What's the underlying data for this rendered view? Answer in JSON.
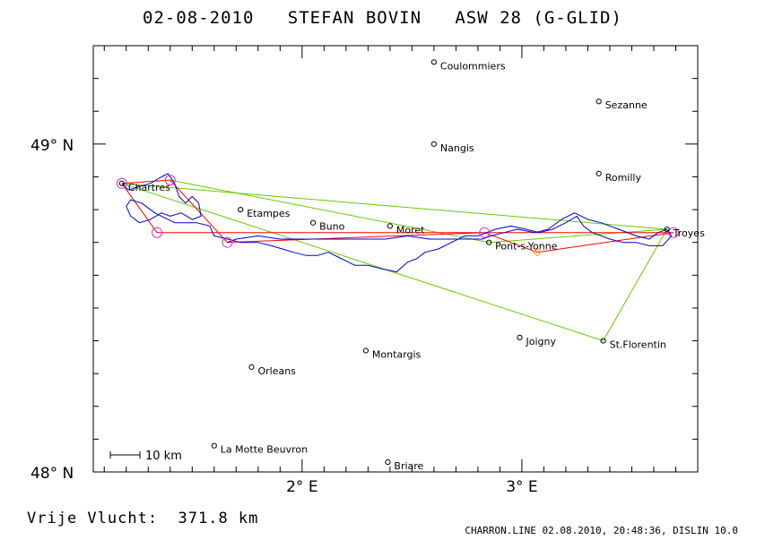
{
  "title": "02-08-2010   STEFAN BOVIN   ASW 28 (G-GLID)",
  "distance_text": "Vrije Vlucht:  371.8 km",
  "footer_text": "CHARRON.LINE 02.08.2010, 20:48:36, DISLIN 10.0",
  "scale_bar_label": "10 km",
  "map": {
    "lon_range": [
      1.05,
      3.8
    ],
    "lat_range": [
      48.0,
      49.3
    ],
    "lat_ticks": [
      {
        "lat": 49.0,
        "label": "49° N"
      },
      {
        "lat": 48.0,
        "label": "48° N"
      }
    ],
    "lon_ticks": [
      {
        "lon": 2.0,
        "label": "2° E"
      },
      {
        "lon": 3.0,
        "label": "3° E"
      }
    ],
    "towns": [
      {
        "name": "Coulommiers",
        "lon": 2.6,
        "lat": 49.25
      },
      {
        "name": "Sezanne",
        "lon": 3.35,
        "lat": 49.13
      },
      {
        "name": "Nangis",
        "lon": 2.6,
        "lat": 49.0
      },
      {
        "name": "Romilly",
        "lon": 3.35,
        "lat": 48.91
      },
      {
        "name": "Chartres",
        "lon": 1.18,
        "lat": 48.88
      },
      {
        "name": "Etampes",
        "lon": 1.72,
        "lat": 48.8
      },
      {
        "name": "Buno",
        "lon": 2.05,
        "lat": 48.76
      },
      {
        "name": "Moret",
        "lon": 2.4,
        "lat": 48.75
      },
      {
        "name": "Troyes",
        "lon": 3.66,
        "lat": 48.74
      },
      {
        "name": "Pont-s-Yonne",
        "lon": 2.85,
        "lat": 48.7
      },
      {
        "name": "Joigny",
        "lon": 2.99,
        "lat": 48.41
      },
      {
        "name": "St.Florentin",
        "lon": 3.37,
        "lat": 48.4
      },
      {
        "name": "Montargis",
        "lon": 2.29,
        "lat": 48.37
      },
      {
        "name": "Orleans",
        "lon": 1.77,
        "lat": 48.32
      },
      {
        "name": "La Motte Beuvron",
        "lon": 1.6,
        "lat": 48.08
      },
      {
        "name": "Briare",
        "lon": 2.39,
        "lat": 48.03
      }
    ],
    "turnpoints": [
      {
        "lon": 1.18,
        "lat": 48.88
      },
      {
        "lon": 1.4,
        "lat": 48.89
      },
      {
        "lon": 1.34,
        "lat": 48.73
      },
      {
        "lon": 1.66,
        "lat": 48.7
      },
      {
        "lon": 2.83,
        "lat": 48.73
      },
      {
        "lon": 3.69,
        "lat": 48.73
      }
    ],
    "task_route": [
      {
        "lon": 1.18,
        "lat": 48.88
      },
      {
        "lon": 3.37,
        "lat": 48.4
      },
      {
        "lon": 3.66,
        "lat": 48.74
      },
      {
        "lon": 1.18,
        "lat": 48.88
      }
    ],
    "task_route_2": [
      {
        "lon": 1.4,
        "lat": 48.89
      },
      {
        "lon": 2.85,
        "lat": 48.7
      },
      {
        "lon": 3.66,
        "lat": 48.74
      }
    ],
    "scored_route": [
      {
        "lon": 1.18,
        "lat": 48.88
      },
      {
        "lon": 1.34,
        "lat": 48.73
      },
      {
        "lon": 3.69,
        "lat": 48.73
      },
      {
        "lon": 3.07,
        "lat": 48.67
      },
      {
        "lon": 2.83,
        "lat": 48.73
      },
      {
        "lon": 1.66,
        "lat": 48.7
      },
      {
        "lon": 1.4,
        "lat": 48.89
      },
      {
        "lon": 1.18,
        "lat": 48.88
      }
    ],
    "flight_track": [
      [
        1.18,
        48.88
      ],
      [
        1.21,
        48.86
      ],
      [
        1.26,
        48.87
      ],
      [
        1.31,
        48.88
      ],
      [
        1.36,
        48.9
      ],
      [
        1.39,
        48.91
      ],
      [
        1.42,
        48.88
      ],
      [
        1.44,
        48.84
      ],
      [
        1.47,
        48.82
      ],
      [
        1.5,
        48.84
      ],
      [
        1.53,
        48.82
      ],
      [
        1.54,
        48.78
      ],
      [
        1.5,
        48.77
      ],
      [
        1.45,
        48.79
      ],
      [
        1.4,
        48.78
      ],
      [
        1.36,
        48.79
      ],
      [
        1.31,
        48.77
      ],
      [
        1.26,
        48.76
      ],
      [
        1.22,
        48.78
      ],
      [
        1.2,
        48.81
      ],
      [
        1.22,
        48.83
      ],
      [
        1.27,
        48.82
      ],
      [
        1.33,
        48.79
      ],
      [
        1.42,
        48.76
      ],
      [
        1.52,
        48.76
      ],
      [
        1.58,
        48.75
      ],
      [
        1.6,
        48.72
      ],
      [
        1.66,
        48.71
      ],
      [
        1.72,
        48.7
      ],
      [
        1.8,
        48.7
      ],
      [
        1.86,
        48.69
      ],
      [
        1.91,
        48.68
      ],
      [
        1.96,
        48.67
      ],
      [
        2.02,
        48.66
      ],
      [
        2.07,
        48.66
      ],
      [
        2.12,
        48.67
      ],
      [
        2.18,
        48.65
      ],
      [
        2.24,
        48.63
      ],
      [
        2.3,
        48.63
      ],
      [
        2.36,
        48.62
      ],
      [
        2.43,
        48.61
      ],
      [
        2.48,
        48.64
      ],
      [
        2.52,
        48.65
      ],
      [
        2.56,
        48.67
      ],
      [
        2.62,
        48.68
      ],
      [
        2.68,
        48.7
      ],
      [
        2.74,
        48.72
      ],
      [
        2.8,
        48.72
      ],
      [
        2.84,
        48.73
      ],
      [
        2.88,
        48.74
      ],
      [
        2.95,
        48.75
      ],
      [
        3.02,
        48.74
      ],
      [
        3.08,
        48.73
      ],
      [
        3.14,
        48.74
      ],
      [
        3.2,
        48.76
      ],
      [
        3.25,
        48.78
      ],
      [
        3.28,
        48.75
      ],
      [
        3.32,
        48.73
      ],
      [
        3.4,
        48.71
      ],
      [
        3.46,
        48.7
      ],
      [
        3.52,
        48.7
      ],
      [
        3.58,
        48.69
      ],
      [
        3.64,
        48.69
      ],
      [
        3.68,
        48.72
      ],
      [
        3.66,
        48.74
      ],
      [
        3.62,
        48.73
      ],
      [
        3.58,
        48.71
      ],
      [
        3.52,
        48.72
      ],
      [
        3.44,
        48.74
      ],
      [
        3.36,
        48.76
      ],
      [
        3.3,
        48.77
      ],
      [
        3.24,
        48.79
      ],
      [
        3.18,
        48.77
      ],
      [
        3.12,
        48.74
      ],
      [
        3.06,
        48.73
      ],
      [
        2.98,
        48.74
      ],
      [
        2.92,
        48.73
      ],
      [
        2.86,
        48.72
      ],
      [
        2.82,
        48.71
      ],
      [
        2.76,
        48.71
      ],
      [
        2.68,
        48.71
      ],
      [
        2.58,
        48.71
      ],
      [
        2.48,
        48.72
      ],
      [
        2.38,
        48.71
      ],
      [
        2.26,
        48.71
      ],
      [
        2.14,
        48.71
      ],
      [
        2.02,
        48.71
      ],
      [
        1.9,
        48.71
      ],
      [
        1.8,
        48.72
      ],
      [
        1.7,
        48.71
      ],
      [
        1.66,
        48.7
      ]
    ],
    "colors": {
      "frame": "#000000",
      "track": "#0000cc",
      "scored_route": "#ff0000",
      "task_route": "#66cc00",
      "turnpoint": "#cc33cc",
      "finish_marker": "#ff9900",
      "town_marker": "#000000"
    }
  }
}
